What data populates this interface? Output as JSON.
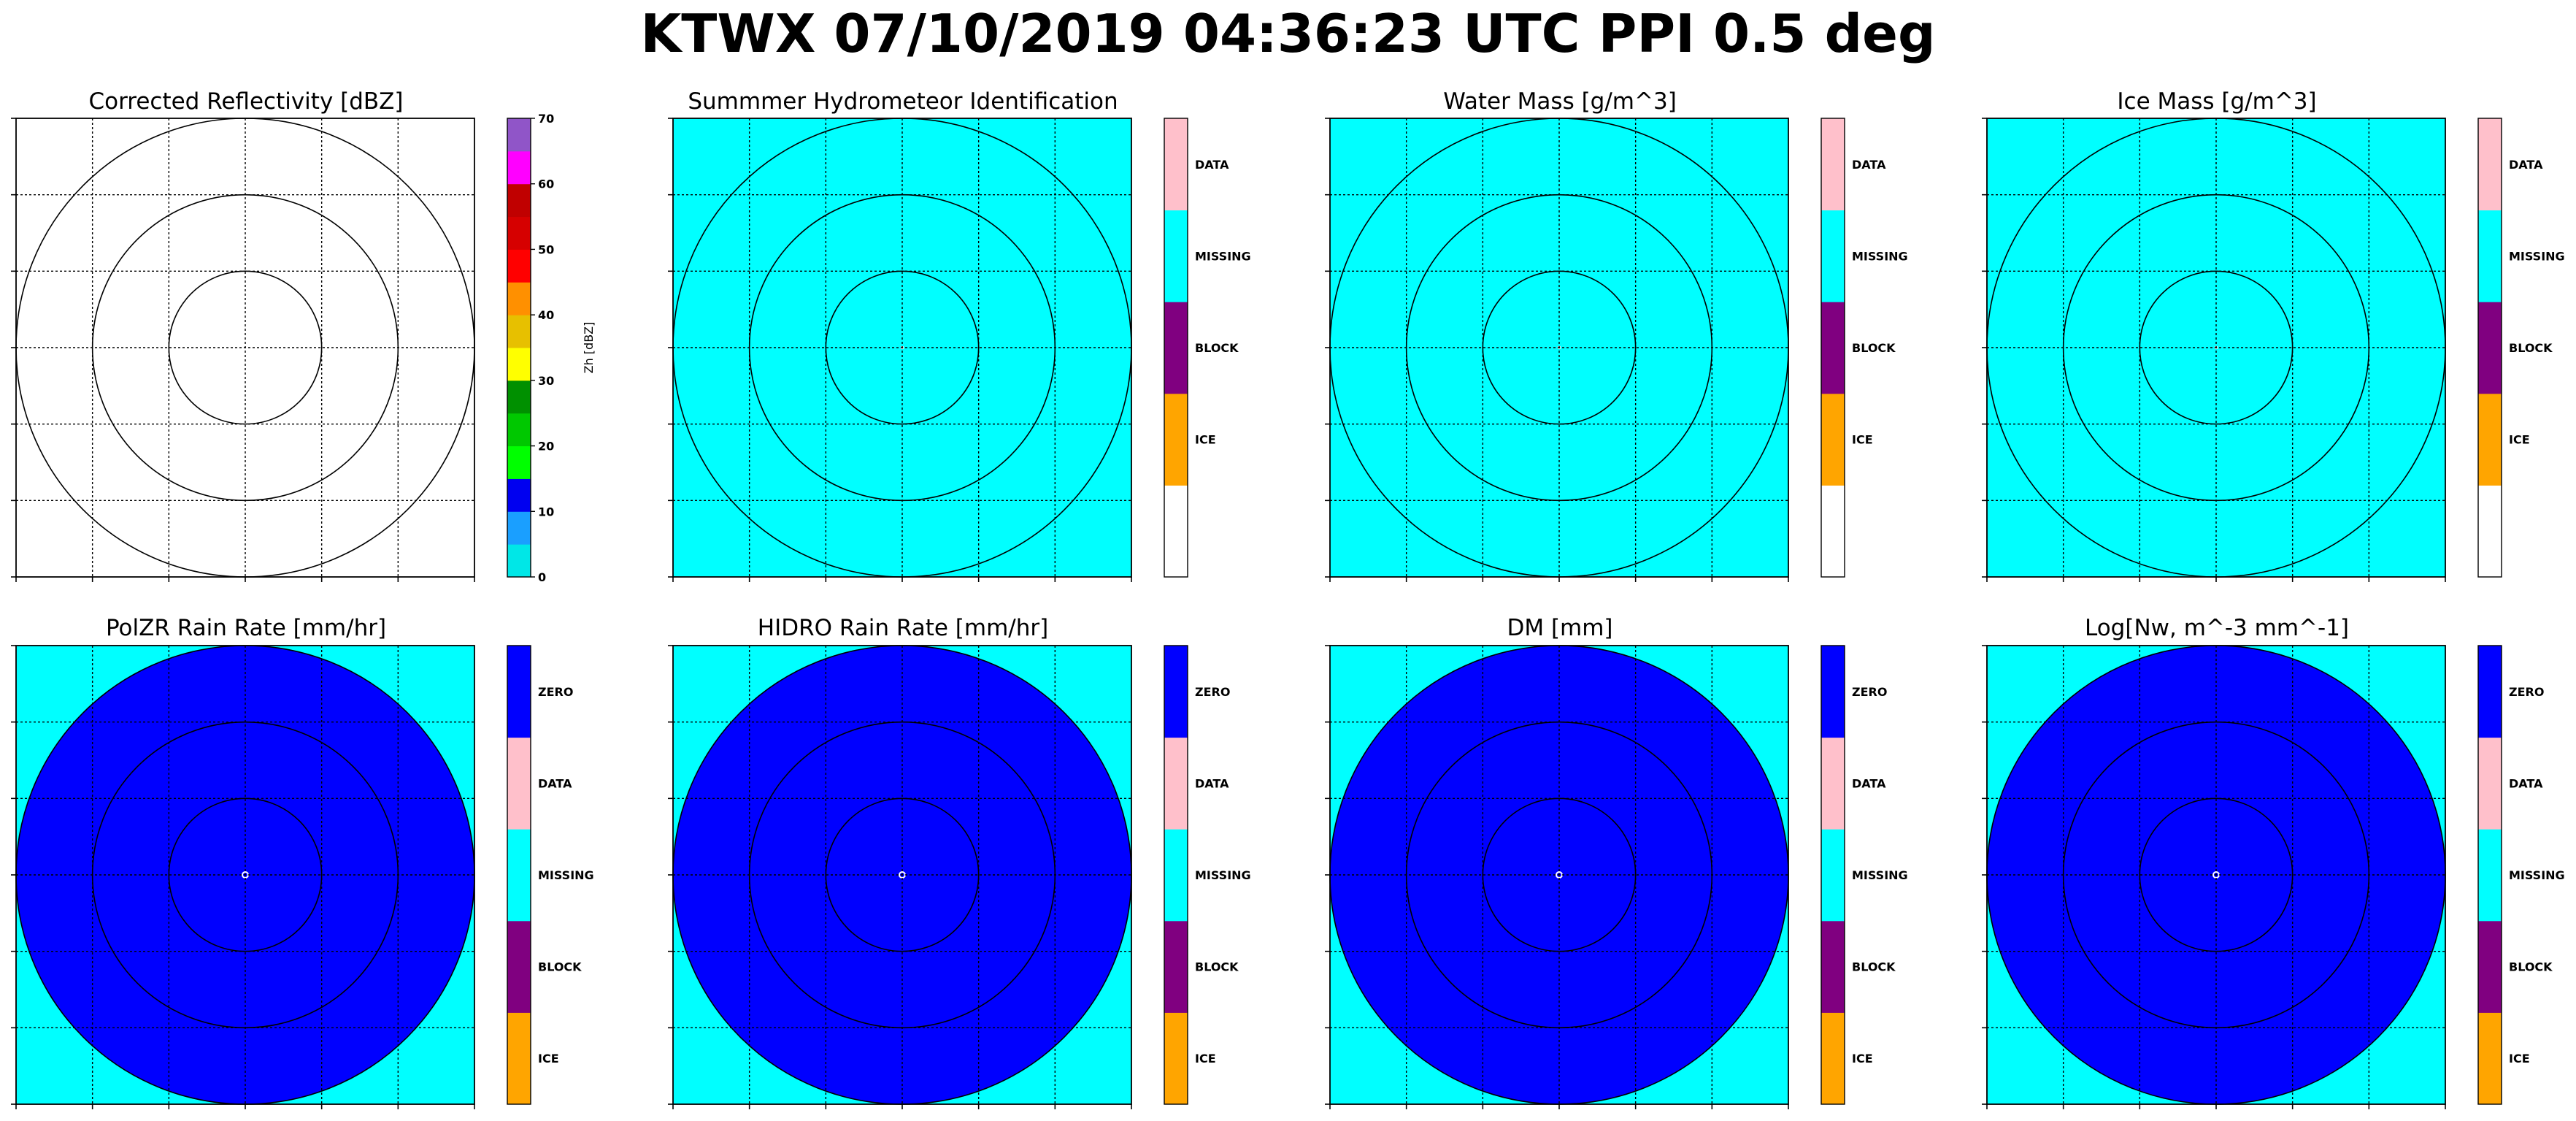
{
  "figure": {
    "title": "KTWX 07/10/2019 04:36:23 UTC PPI 0.5 deg"
  },
  "colors": {
    "zero": "#0000ff",
    "data": "#ffc0cb",
    "missing": "#00ffff",
    "block": "#800080",
    "ice": "#ffa500",
    "blank": "#ffffff",
    "background": "#ffffff"
  },
  "chart_data": [
    {
      "type": "heatmap",
      "title": "Corrected Reflectivity [dBZ]",
      "field": "reflectivity",
      "grid": true,
      "range_rings": 3,
      "colorbar": {
        "kind": "continuous",
        "label": "Zh [dBZ]",
        "range": [
          0,
          70
        ],
        "ticks": [
          "0",
          "10",
          "20",
          "30",
          "40",
          "50",
          "60",
          "70"
        ],
        "colors": [
          "#00e7e7",
          "#1a9fff",
          "#0000f0",
          "#00ff00",
          "#00c800",
          "#009000",
          "#ffff00",
          "#e7c000",
          "#ff9000",
          "#ff0000",
          "#d60000",
          "#c00000",
          "#ff00ff",
          "#9055c8"
        ]
      }
    },
    {
      "type": "heatmap",
      "title": "Summmer Hydrometeor Identification",
      "field": "missing",
      "grid": true,
      "range_rings": 3,
      "colorbar": {
        "kind": "categorical",
        "categories": [
          "ICE",
          "BLOCK",
          "MISSING",
          "DATA"
        ]
      }
    },
    {
      "type": "heatmap",
      "title": "Water Mass [g/m^3]",
      "field": "missing",
      "grid": true,
      "range_rings": 3,
      "colorbar": {
        "kind": "categorical",
        "categories": [
          "ICE",
          "BLOCK",
          "MISSING",
          "DATA"
        ]
      }
    },
    {
      "type": "heatmap",
      "title": "Ice Mass [g/m^3]",
      "field": "missing",
      "grid": true,
      "range_rings": 3,
      "colorbar": {
        "kind": "categorical",
        "categories": [
          "ICE",
          "BLOCK",
          "MISSING",
          "DATA"
        ]
      }
    },
    {
      "type": "heatmap",
      "title": "PolZR Rain Rate [mm/hr]",
      "field": "zero_disk",
      "grid": true,
      "range_rings": 3,
      "colorbar": {
        "kind": "categorical",
        "categories": [
          "ICE",
          "BLOCK",
          "MISSING",
          "DATA",
          "ZERO"
        ]
      }
    },
    {
      "type": "heatmap",
      "title": "HIDRO Rain Rate [mm/hr]",
      "field": "zero_disk",
      "grid": true,
      "range_rings": 3,
      "colorbar": {
        "kind": "categorical",
        "categories": [
          "ICE",
          "BLOCK",
          "MISSING",
          "DATA",
          "ZERO"
        ]
      }
    },
    {
      "type": "heatmap",
      "title": "DM [mm]",
      "field": "zero_disk",
      "grid": true,
      "range_rings": 3,
      "colorbar": {
        "kind": "categorical",
        "categories": [
          "ICE",
          "BLOCK",
          "MISSING",
          "DATA",
          "ZERO"
        ]
      }
    },
    {
      "type": "heatmap",
      "title": "Log[Nw, m^-3 mm^-1]",
      "field": "zero_disk",
      "grid": true,
      "range_rings": 3,
      "colorbar": {
        "kind": "categorical",
        "categories": [
          "ICE",
          "BLOCK",
          "MISSING",
          "DATA",
          "ZERO"
        ]
      }
    }
  ]
}
